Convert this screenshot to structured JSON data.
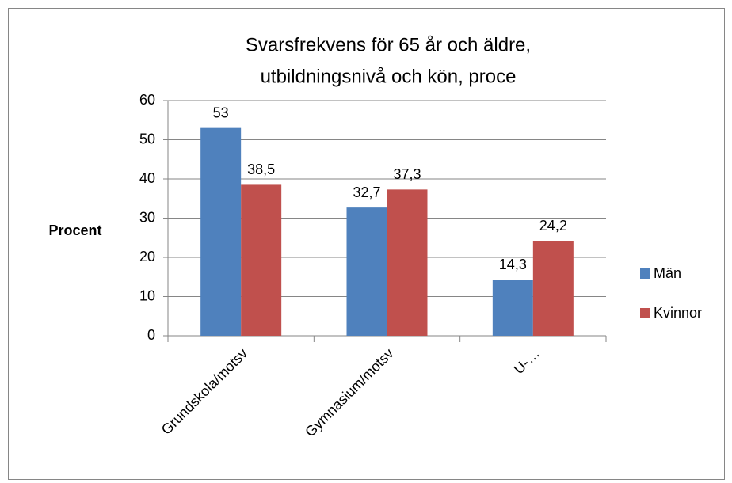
{
  "chart_data": {
    "type": "bar",
    "title": [
      "Svarsfrekvens för 65 år och äldre,",
      "utbildningsnivå och kön, proce"
    ],
    "y_label": "Procent",
    "categories": [
      "Grundskola/motsv",
      "Gymnasium/motsv",
      "U-…"
    ],
    "series": [
      {
        "name": "Män",
        "color": "#4f81bd",
        "values": [
          53,
          32.7,
          14.3
        ],
        "value_labels": [
          "53",
          "32,7",
          "14,3"
        ]
      },
      {
        "name": "Kvinnor",
        "color": "#c0504d",
        "values": [
          38.5,
          37.3,
          24.2
        ],
        "value_labels": [
          "38,5",
          "37,3",
          "24,2"
        ]
      }
    ],
    "ylim": [
      0,
      60
    ],
    "yticks": [
      0,
      10,
      20,
      30,
      40,
      50,
      60
    ],
    "grid": true,
    "legend": "right"
  }
}
